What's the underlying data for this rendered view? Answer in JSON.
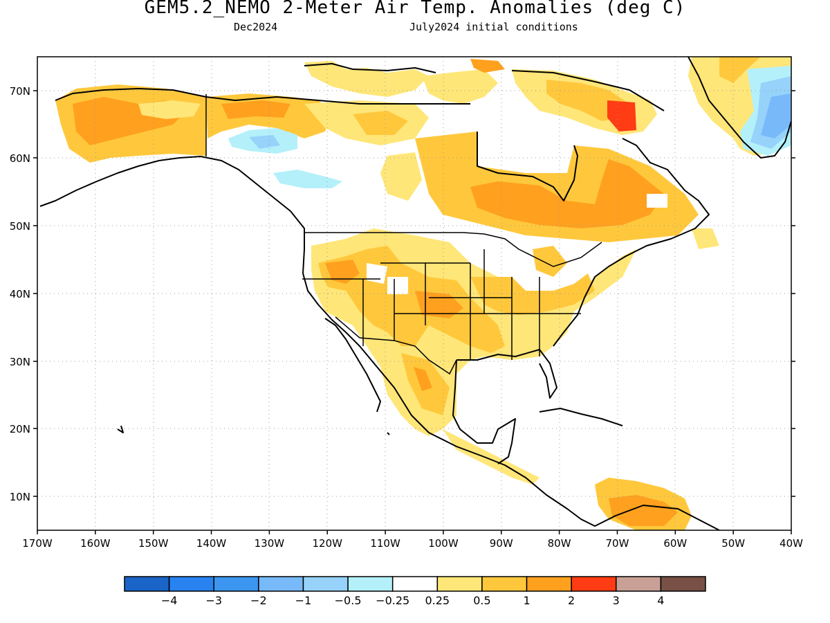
{
  "title": "GEM5.2_NEMO 2-Meter Air Temp. Anomalies (deg C)",
  "subtitle_left": "Dec2024",
  "subtitle_right": "July2024 initial conditions",
  "map": {
    "lat_labels": [
      "70N",
      "60N",
      "50N",
      "40N",
      "30N",
      "20N",
      "10N"
    ],
    "lon_labels": [
      "170W",
      "160W",
      "150W",
      "140W",
      "130W",
      "120W",
      "110W",
      "100W",
      "90W",
      "80W",
      "70W",
      "60W",
      "50W",
      "40W"
    ],
    "grid": "dotted"
  },
  "legend": {
    "colors": [
      "#1a64c8",
      "#2882f0",
      "#3c96f0",
      "#78b9fa",
      "#96d2fa",
      "#b4f0fa",
      "#ffffff",
      "#ffe678",
      "#ffc83c",
      "#ffa01e",
      "#ff3c14",
      "#c8a096",
      "#785046"
    ],
    "labels": [
      "−4",
      "−3",
      "−2",
      "−1",
      "−0.5",
      "−0.25",
      "0.25",
      "0.5",
      "1",
      "2",
      "3",
      "4"
    ]
  }
}
